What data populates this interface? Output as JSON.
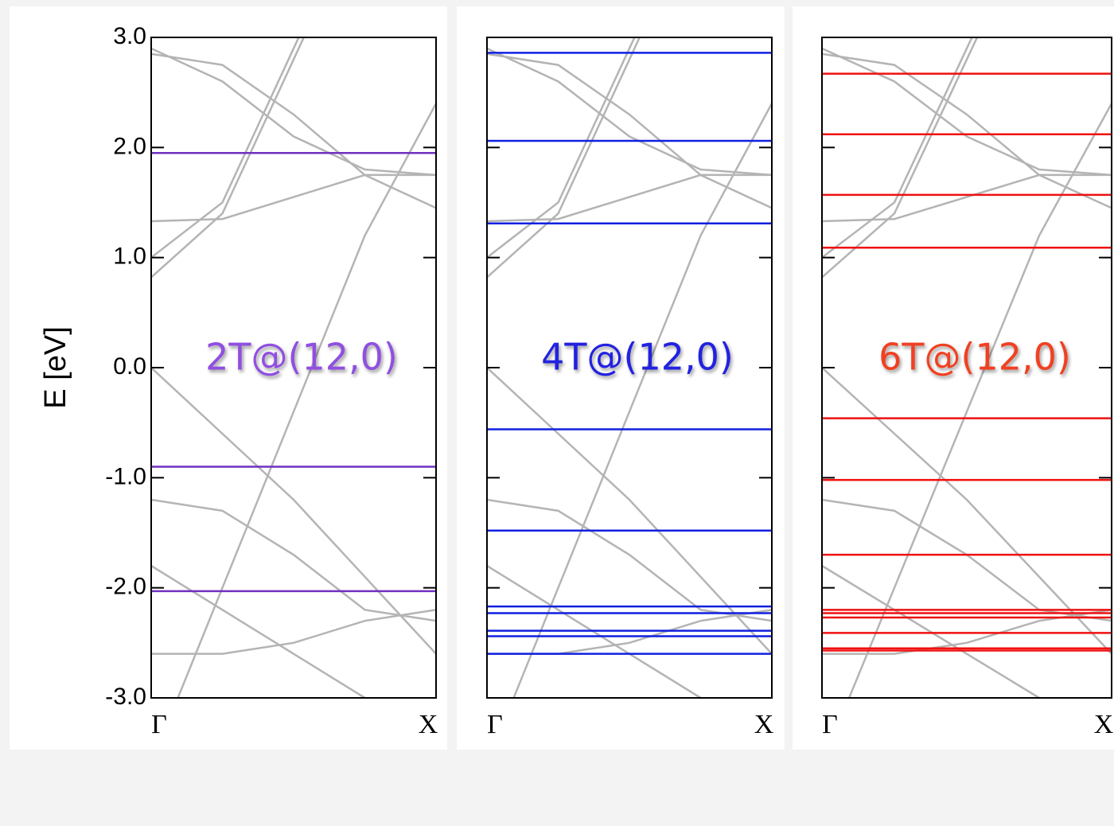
{
  "chart_data": [
    {
      "type": "line",
      "ylabel": "E [eV]",
      "label": "2T@(12,0)",
      "label_color": "#9050e0",
      "ylim": [
        -3,
        3
      ],
      "yticks": [
        {
          "value": -3,
          "label": "-3.0"
        },
        {
          "value": -2,
          "label": "-2.0"
        },
        {
          "value": -1,
          "label": "-1.0"
        },
        {
          "value": 0,
          "label": "0.0"
        },
        {
          "value": 1,
          "label": "1.0"
        },
        {
          "value": 2,
          "label": "2.0"
        },
        {
          "value": 3,
          "label": "3.0"
        }
      ],
      "xlim": [
        0,
        1
      ],
      "xticks": [
        {
          "value": 0,
          "label": "Γ"
        },
        {
          "value": 1,
          "label": "X"
        }
      ],
      "level_color": "#7030c0",
      "levels": [
        1.95,
        -0.9,
        -2.03
      ],
      "band_color": "#b4b4b4",
      "bands_x": [
        0,
        0.25,
        0.5,
        0.75,
        1
      ],
      "bands": [
        [
          0.82,
          1.4,
          2.8,
          4.2,
          5.6
        ],
        [
          1.0,
          1.5,
          2.9,
          4.3,
          5.7
        ],
        [
          1.33,
          1.35,
          1.55,
          1.75,
          1.75
        ],
        [
          2.9,
          2.6,
          2.1,
          1.8,
          1.75
        ],
        [
          2.85,
          2.75,
          2.3,
          1.75,
          1.45
        ],
        [
          0.0,
          -0.6,
          -1.2,
          -1.9,
          -2.6
        ],
        [
          -1.2,
          -1.3,
          -1.7,
          -2.2,
          -2.3
        ],
        [
          -1.8,
          -2.2,
          -2.6,
          -3.0,
          -3.4
        ],
        [
          -2.6,
          -2.6,
          -2.5,
          -2.3,
          -2.2
        ],
        [
          -3.6,
          -2.0,
          -0.4,
          1.2,
          2.4
        ]
      ]
    },
    {
      "type": "line",
      "label": "4T@(12,0)",
      "label_color": "#2020e0",
      "ylim": [
        -3,
        3
      ],
      "xlim": [
        0,
        1
      ],
      "xticks": [
        {
          "value": 0,
          "label": "Γ"
        },
        {
          "value": 1,
          "label": "X"
        }
      ],
      "level_color": "#1020e0",
      "levels": [
        2.86,
        2.06,
        1.31,
        -0.56,
        -1.48,
        -2.17,
        -2.23,
        -2.39,
        -2.44,
        -2.6
      ],
      "band_color": "#b4b4b4",
      "bands_x": [
        0,
        0.25,
        0.5,
        0.75,
        1
      ],
      "bands": [
        [
          0.82,
          1.4,
          2.8,
          4.2,
          5.6
        ],
        [
          1.0,
          1.5,
          2.9,
          4.3,
          5.7
        ],
        [
          1.33,
          1.35,
          1.55,
          1.75,
          1.75
        ],
        [
          2.9,
          2.6,
          2.1,
          1.8,
          1.75
        ],
        [
          2.85,
          2.75,
          2.3,
          1.75,
          1.45
        ],
        [
          0.0,
          -0.6,
          -1.2,
          -1.9,
          -2.6
        ],
        [
          -1.2,
          -1.3,
          -1.7,
          -2.2,
          -2.3
        ],
        [
          -1.8,
          -2.2,
          -2.6,
          -3.0,
          -3.4
        ],
        [
          -2.6,
          -2.6,
          -2.5,
          -2.3,
          -2.2
        ],
        [
          -3.6,
          -2.0,
          -0.4,
          1.2,
          2.4
        ]
      ]
    },
    {
      "type": "line",
      "label": "6T@(12,0)",
      "label_color": "#f04020",
      "ylim": [
        -3,
        3
      ],
      "xlim": [
        0,
        1
      ],
      "xticks": [
        {
          "value": 0,
          "label": "Γ"
        },
        {
          "value": 1,
          "label": "X"
        }
      ],
      "level_color": "#f01010",
      "levels": [
        2.67,
        2.12,
        1.57,
        1.09,
        -0.46,
        -1.02,
        -1.7,
        -2.2,
        -2.23,
        -2.27,
        -2.41,
        -2.55,
        -2.57
      ],
      "band_color": "#b4b4b4",
      "bands_x": [
        0,
        0.25,
        0.5,
        0.75,
        1
      ],
      "bands": [
        [
          0.82,
          1.4,
          2.8,
          4.2,
          5.6
        ],
        [
          1.0,
          1.5,
          2.9,
          4.3,
          5.7
        ],
        [
          1.33,
          1.35,
          1.55,
          1.75,
          1.75
        ],
        [
          2.9,
          2.6,
          2.1,
          1.8,
          1.75
        ],
        [
          2.85,
          2.75,
          2.3,
          1.75,
          1.45
        ],
        [
          0.0,
          -0.6,
          -1.2,
          -1.9,
          -2.6
        ],
        [
          -1.2,
          -1.3,
          -1.7,
          -2.2,
          -2.3
        ],
        [
          -1.8,
          -2.2,
          -2.6,
          -3.0,
          -3.4
        ],
        [
          -2.6,
          -2.6,
          -2.5,
          -2.3,
          -2.2
        ],
        [
          -3.6,
          -2.0,
          -0.4,
          1.2,
          2.4
        ]
      ]
    }
  ]
}
